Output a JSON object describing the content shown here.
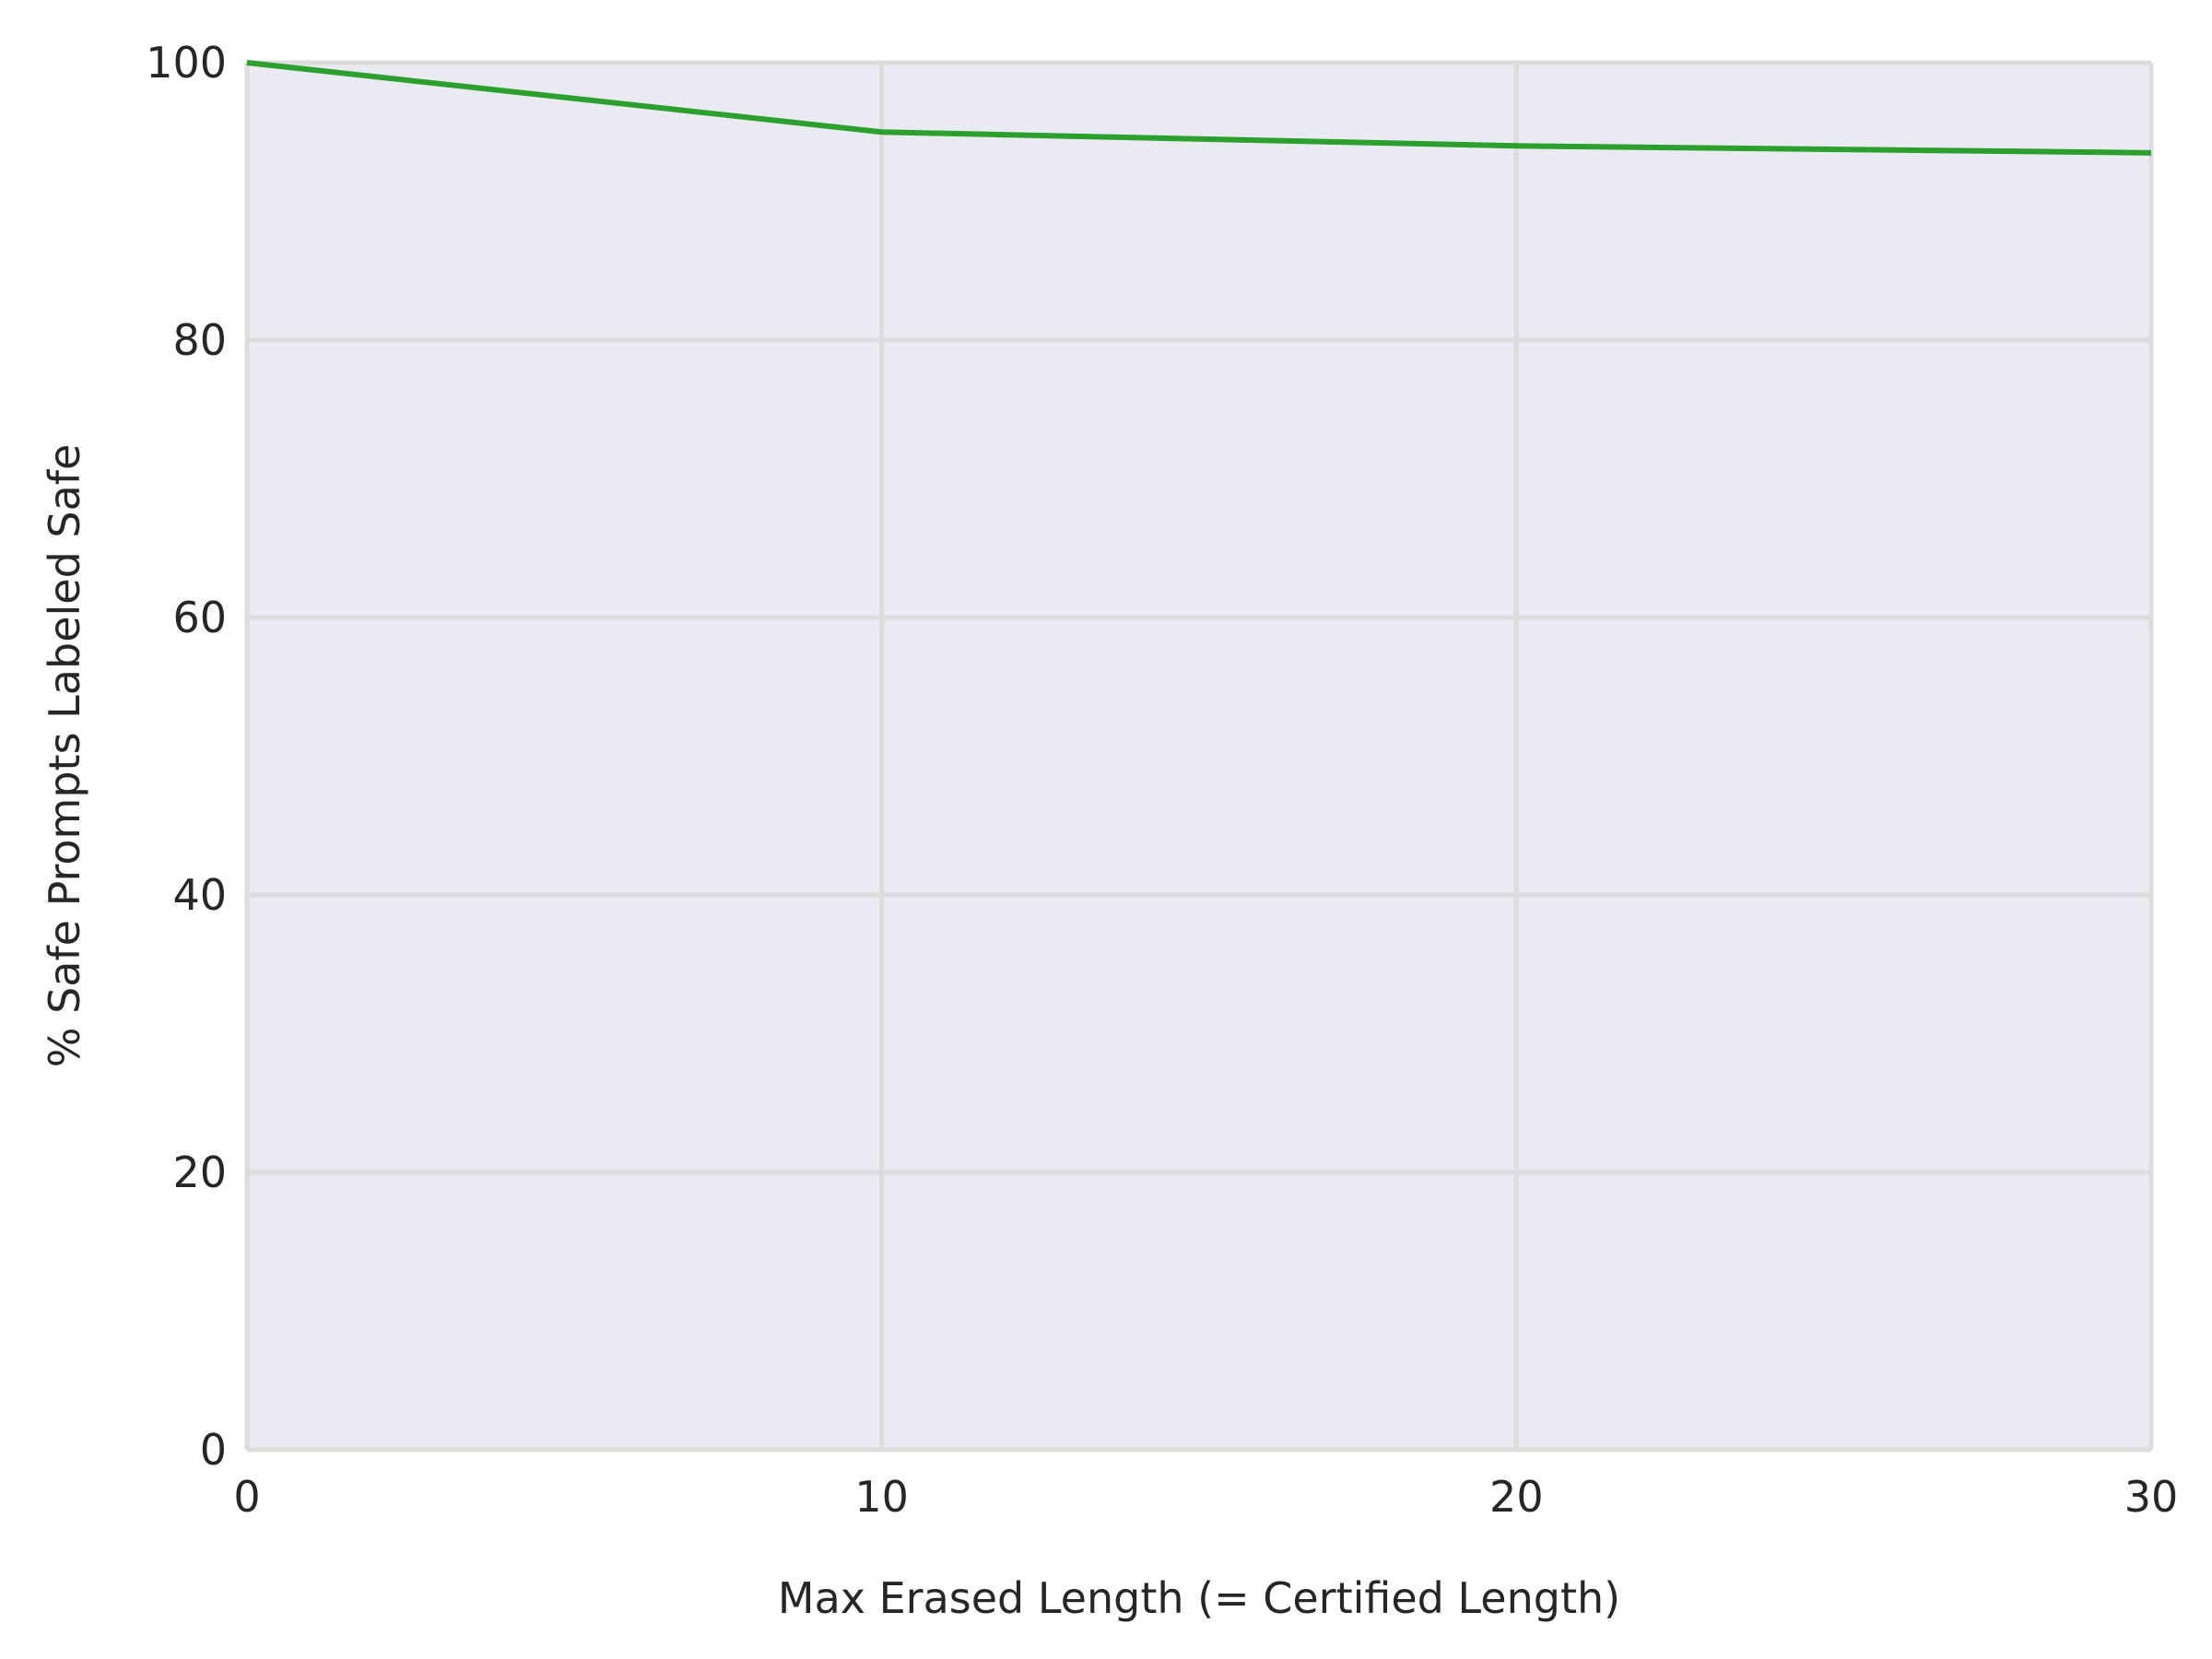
{
  "chart_data": {
    "type": "line",
    "title": "",
    "xlabel": "Max Erased Length (= Certified Length)",
    "ylabel": "% Safe Prompts Labeled Safe",
    "xlim": [
      0,
      30
    ],
    "ylim": [
      0,
      100
    ],
    "xticks": [
      0,
      10,
      20,
      30
    ],
    "yticks": [
      0,
      20,
      40,
      60,
      80,
      100
    ],
    "grid": true,
    "background": "#eaeaf2",
    "grid_color": "#dcdcdc",
    "series": [
      {
        "color": "#2ca02c",
        "x": [
          0,
          10,
          20,
          30
        ],
        "y": [
          100.0,
          95.0,
          94.0,
          93.5
        ]
      }
    ]
  }
}
